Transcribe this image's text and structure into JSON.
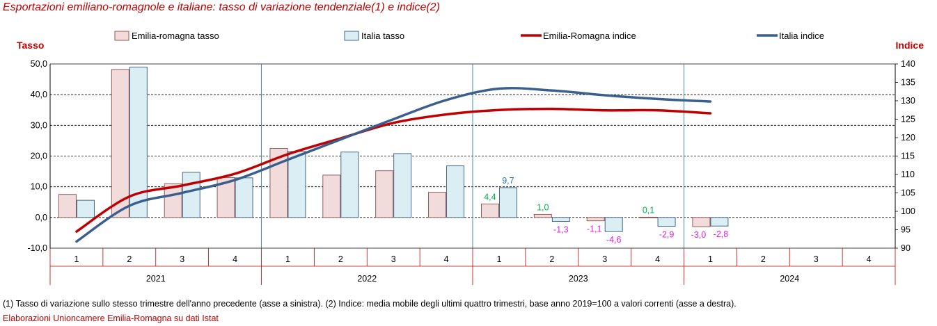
{
  "header": {
    "title": "Esportazioni emiliano-romagnole e italiane: tasso di variazione tendenziale(1) e indice(2)"
  },
  "footer": {
    "note": "(1) Tasso di variazione sullo stesso trimestre dell'anno precedente (asse a sinistra). (2) Indice: media mobile degli ultimi quattro trimestri, base anno 2019=100 a valori correnti (asse a destra).",
    "source": "Elaborazioni Unioncamere Emilia-Romagna su dati Istat"
  },
  "colors": {
    "er_bar_fill": "#f2dcdb",
    "er_bar_stroke": "#8c4a4a",
    "it_bar_fill": "#dbeef4",
    "it_bar_stroke": "#31577a",
    "er_line": "#c00000",
    "it_line": "#3a5f8f",
    "label_pos": "#00b050",
    "label_neg": "#e020e0",
    "label_it": "#1f77b4",
    "axis_title": "#c00000"
  },
  "chart_data": {
    "type": "bar+line",
    "left_axis": {
      "title": "Tasso",
      "ylim": [
        -10,
        50
      ],
      "ticks": [
        "-10,0",
        "0,0",
        "10,0",
        "20,0",
        "30,0",
        "40,0",
        "50,0"
      ]
    },
    "right_axis": {
      "title": "Indice",
      "ylim": [
        90,
        140
      ],
      "ticks": [
        "90",
        "95",
        "100",
        "105",
        "110",
        "115",
        "120",
        "125",
        "130",
        "135",
        "140"
      ]
    },
    "categories": [
      "1",
      "2",
      "3",
      "4",
      "1",
      "2",
      "3",
      "4",
      "1",
      "2",
      "3",
      "4",
      "1",
      "2",
      "3",
      "4"
    ],
    "years": [
      "2021",
      "2022",
      "2023",
      "2024"
    ],
    "legend": [
      "Emilia-romagna tasso",
      "Italia tasso",
      "Emilia-Romagna indice",
      "Italia indice"
    ],
    "bar_series": [
      {
        "name": "Emilia-romagna tasso",
        "values": [
          7.5,
          48.2,
          11.0,
          13.0,
          22.5,
          13.8,
          15.2,
          8.2,
          4.4,
          1.0,
          -1.1,
          0.1,
          -3.0,
          null,
          null,
          null
        ]
      },
      {
        "name": "Italia tasso",
        "values": [
          5.6,
          49.0,
          14.7,
          12.9,
          21.5,
          21.3,
          20.8,
          16.8,
          9.7,
          -1.3,
          -4.6,
          -2.9,
          -2.8,
          null,
          null,
          null
        ]
      }
    ],
    "line_series": [
      {
        "name": "Emilia-Romagna indice",
        "values": [
          94.5,
          104.0,
          107.0,
          110.2,
          115.5,
          119.8,
          124.0,
          126.3,
          127.5,
          127.8,
          127.4,
          127.4,
          126.6
        ]
      },
      {
        "name": "Italia indice",
        "values": [
          91.8,
          101.5,
          105.0,
          108.5,
          114.0,
          119.5,
          125.0,
          130.2,
          133.3,
          132.8,
          131.5,
          130.5,
          129.8
        ]
      }
    ],
    "data_labels": [
      {
        "index": 8,
        "series": "Emilia-romagna tasso",
        "text": "4,4"
      },
      {
        "index": 8,
        "series": "Italia tasso",
        "text": "9,7"
      },
      {
        "index": 9,
        "series": "Emilia-romagna tasso",
        "text": "1,0"
      },
      {
        "index": 9,
        "series": "Italia tasso",
        "text": "-1,3"
      },
      {
        "index": 10,
        "series": "Emilia-romagna tasso",
        "text": "-1,1"
      },
      {
        "index": 10,
        "series": "Italia tasso",
        "text": "-4,6"
      },
      {
        "index": 11,
        "series": "Emilia-romagna tasso",
        "text": "0,1"
      },
      {
        "index": 11,
        "series": "Italia tasso",
        "text": "-2,9"
      },
      {
        "index": 12,
        "series": "Emilia-romagna tasso",
        "text": "-3,0"
      },
      {
        "index": 12,
        "series": "Italia tasso",
        "text": "-2,8"
      }
    ],
    "grid": "horizontal dashed",
    "legend_position": "top"
  }
}
